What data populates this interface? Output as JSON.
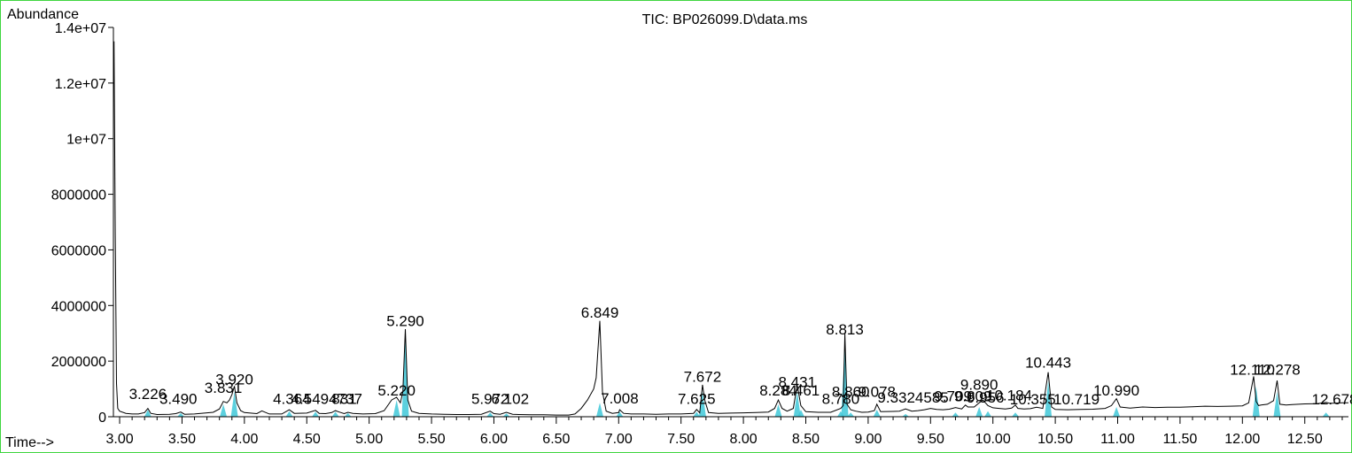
{
  "chart_data": {
    "type": "line",
    "title": "TIC: BP026099.D\\data.ms",
    "ylabel": "Abundance",
    "xlabel": "Time-->",
    "xlim": [
      2.95,
      12.85
    ],
    "ylim": [
      0,
      14000000
    ],
    "x_ticks": [
      3.0,
      3.5,
      4.0,
      4.5,
      5.0,
      5.5,
      6.0,
      6.5,
      7.0,
      7.5,
      8.0,
      8.5,
      9.0,
      9.5,
      10.0,
      10.5,
      11.0,
      11.5,
      12.0,
      12.5
    ],
    "x_tick_labels": [
      "3.00",
      "3.50",
      "4.00",
      "4.50",
      "5.00",
      "5.50",
      "6.00",
      "6.50",
      "7.00",
      "7.50",
      "8.00",
      "8.50",
      "9.00",
      "9.50",
      "10.00",
      "10.50",
      "11.00",
      "11.50",
      "12.00",
      "12.50"
    ],
    "y_ticks": [
      0,
      2000000,
      4000000,
      6000000,
      8000000,
      10000000,
      12000000,
      14000000
    ],
    "y_tick_labels": [
      "0",
      "2000000",
      "4000000",
      "6000000",
      "8000000",
      "1e+07",
      "1.2e+07",
      "1.4e+07"
    ],
    "series": [
      {
        "x": [
          2.955,
          2.965,
          2.975,
          2.985,
          3.0,
          3.05,
          3.1,
          3.15,
          3.2,
          3.226,
          3.25,
          3.3,
          3.4,
          3.45,
          3.49,
          3.52,
          3.6,
          3.7,
          3.75,
          3.8,
          3.831,
          3.86,
          3.88,
          3.9,
          3.92,
          3.94,
          3.97,
          4.0,
          4.1,
          4.14,
          4.2,
          4.3,
          4.36,
          4.4,
          4.5,
          4.57,
          4.6,
          4.65,
          4.7,
          4.73,
          4.76,
          4.8,
          4.83,
          4.87,
          4.95,
          5.05,
          5.12,
          5.18,
          5.22,
          5.25,
          5.27,
          5.29,
          5.31,
          5.34,
          5.4,
          5.5,
          5.6,
          5.7,
          5.8,
          5.9,
          5.97,
          6.0,
          6.05,
          6.1,
          6.15,
          6.2,
          6.3,
          6.4,
          6.5,
          6.6,
          6.65,
          6.7,
          6.75,
          6.8,
          6.82,
          6.849,
          6.87,
          6.9,
          6.95,
          7.0,
          7.008,
          7.04,
          7.1,
          7.2,
          7.3,
          7.4,
          7.5,
          7.6,
          7.625,
          7.65,
          7.672,
          7.69,
          7.72,
          7.8,
          7.9,
          8.0,
          8.1,
          8.2,
          8.25,
          8.28,
          8.31,
          8.35,
          8.4,
          8.431,
          8.46,
          8.5,
          8.6,
          8.7,
          8.78,
          8.8,
          8.813,
          8.83,
          8.86,
          8.9,
          8.95,
          9.0,
          9.05,
          9.07,
          9.1,
          9.2,
          9.25,
          9.3,
          9.35,
          9.4,
          9.45,
          9.5,
          9.55,
          9.6,
          9.65,
          9.7,
          9.75,
          9.78,
          9.8,
          9.85,
          9.89,
          9.92,
          9.96,
          10.0,
          10.05,
          10.1,
          10.15,
          10.18,
          10.2,
          10.25,
          10.3,
          10.35,
          10.4,
          10.443,
          10.47,
          10.5,
          10.6,
          10.7,
          10.8,
          10.9,
          10.95,
          10.99,
          11.02,
          11.1,
          11.2,
          11.3,
          11.4,
          11.5,
          11.6,
          11.7,
          11.8,
          11.9,
          12.0,
          12.05,
          12.09,
          12.11,
          12.13,
          12.15,
          12.2,
          12.25,
          12.278,
          12.3,
          12.35,
          12.4,
          12.5,
          12.6,
          12.67,
          12.7,
          12.75,
          12.8,
          12.85
        ],
        "y": [
          13500000,
          6500000,
          1200000,
          300000,
          200000,
          120000,
          100000,
          100000,
          150000,
          300000,
          120000,
          80000,
          90000,
          110000,
          170000,
          90000,
          100000,
          140000,
          160000,
          280000,
          550000,
          500000,
          600000,
          800000,
          1100000,
          500000,
          220000,
          150000,
          110000,
          210000,
          100000,
          100000,
          250000,
          120000,
          130000,
          230000,
          120000,
          110000,
          150000,
          220000,
          170000,
          110000,
          160000,
          120000,
          100000,
          110000,
          220000,
          600000,
          700000,
          500000,
          900000,
          3150000,
          600000,
          200000,
          120000,
          100000,
          90000,
          80000,
          80000,
          90000,
          200000,
          110000,
          90000,
          160000,
          90000,
          80000,
          70000,
          70000,
          60000,
          60000,
          100000,
          300000,
          600000,
          1000000,
          1400000,
          3450000,
          900000,
          200000,
          120000,
          150000,
          250000,
          120000,
          100000,
          100000,
          90000,
          100000,
          100000,
          120000,
          260000,
          140000,
          1150000,
          600000,
          150000,
          120000,
          130000,
          140000,
          150000,
          170000,
          300000,
          600000,
          300000,
          200000,
          300000,
          1150000,
          400000,
          180000,
          160000,
          160000,
          300000,
          400000,
          3000000,
          450000,
          250000,
          200000,
          160000,
          170000,
          220000,
          450000,
          180000,
          190000,
          200000,
          280000,
          200000,
          220000,
          250000,
          300000,
          260000,
          250000,
          270000,
          330000,
          280000,
          420000,
          350000,
          350000,
          500000,
          600000,
          400000,
          320000,
          300000,
          280000,
          310000,
          420000,
          300000,
          280000,
          290000,
          340000,
          300000,
          1600000,
          350000,
          260000,
          250000,
          260000,
          270000,
          300000,
          400000,
          650000,
          350000,
          310000,
          350000,
          330000,
          340000,
          340000,
          360000,
          380000,
          370000,
          380000,
          390000,
          500000,
          1450000,
          550000,
          400000,
          420000,
          450000,
          580000,
          1300000,
          450000,
          420000,
          440000,
          460000,
          470000,
          520000,
          480000,
          490000,
          500000,
          500000
        ]
      }
    ],
    "baseline_fill": [
      {
        "rt": 3.226,
        "h": 250000
      },
      {
        "rt": 3.49,
        "h": 130000
      },
      {
        "rt": 3.831,
        "h": 450000
      },
      {
        "rt": 3.92,
        "h": 900000
      },
      {
        "rt": 4.36,
        "h": 200000
      },
      {
        "rt": 4.57,
        "h": 180000
      },
      {
        "rt": 4.73,
        "h": 180000
      },
      {
        "rt": 4.83,
        "h": 130000
      },
      {
        "rt": 5.22,
        "h": 600000
      },
      {
        "rt": 5.29,
        "h": 2900000
      },
      {
        "rt": 5.97,
        "h": 150000
      },
      {
        "rt": 6.1,
        "h": 120000
      },
      {
        "rt": 6.849,
        "h": 500000
      },
      {
        "rt": 7.008,
        "h": 180000
      },
      {
        "rt": 7.625,
        "h": 180000
      },
      {
        "rt": 7.672,
        "h": 900000
      },
      {
        "rt": 8.28,
        "h": 450000
      },
      {
        "rt": 8.431,
        "h": 900000
      },
      {
        "rt": 8.461,
        "h": 250000
      },
      {
        "rt": 8.78,
        "h": 200000
      },
      {
        "rt": 8.813,
        "h": 2700000
      },
      {
        "rt": 8.86,
        "h": 150000
      },
      {
        "rt": 9.07,
        "h": 250000
      },
      {
        "rt": 9.3,
        "h": 100000
      },
      {
        "rt": 9.7,
        "h": 150000
      },
      {
        "rt": 9.89,
        "h": 350000
      },
      {
        "rt": 9.96,
        "h": 200000
      },
      {
        "rt": 10.18,
        "h": 150000
      },
      {
        "rt": 10.443,
        "h": 1300000
      },
      {
        "rt": 10.99,
        "h": 350000
      },
      {
        "rt": 12.11,
        "h": 1100000
      },
      {
        "rt": 12.278,
        "h": 900000
      },
      {
        "rt": 12.67,
        "h": 150000
      }
    ],
    "peak_labels": [
      {
        "text": "3.226",
        "rt": 3.226,
        "y": 580000
      },
      {
        "text": "3.490",
        "rt": 3.47,
        "y": 400000
      },
      {
        "text": "3.831",
        "rt": 3.831,
        "y": 800000
      },
      {
        "text": "3.920",
        "rt": 3.92,
        "y": 1100000
      },
      {
        "text": "4.364",
        "rt": 4.38,
        "y": 400000
      },
      {
        "text": "4.5494737",
        "rt": 4.66,
        "y": 400000
      },
      {
        "text": "831",
        "rt": 4.8,
        "y": 400000
      },
      {
        "text": "5.220",
        "rt": 5.22,
        "y": 700000
      },
      {
        "text": "5.290",
        "rt": 5.29,
        "y": 3200000
      },
      {
        "text": "5.972",
        "rt": 5.97,
        "y": 400000
      },
      {
        "text": "6.102",
        "rt": 6.13,
        "y": 400000
      },
      {
        "text": "6.849",
        "rt": 6.849,
        "y": 3500000
      },
      {
        "text": "7.008",
        "rt": 7.008,
        "y": 420000
      },
      {
        "text": "7.625",
        "rt": 7.625,
        "y": 400000
      },
      {
        "text": "7.672",
        "rt": 7.672,
        "y": 1200000
      },
      {
        "text": "8.284",
        "rt": 8.28,
        "y": 700000
      },
      {
        "text": "8.431",
        "rt": 8.431,
        "y": 1000000
      },
      {
        "text": "8.461",
        "rt": 8.461,
        "y": 700000
      },
      {
        "text": "8.780",
        "rt": 8.78,
        "y": 400000
      },
      {
        "text": "8.813",
        "rt": 8.813,
        "y": 2900000
      },
      {
        "text": "8.860",
        "rt": 8.86,
        "y": 650000
      },
      {
        "text": "9.078",
        "rt": 9.07,
        "y": 650000
      },
      {
        "text": "9.3324585",
        "rt": 9.36,
        "y": 450000
      },
      {
        "text": "9.709",
        "rt": 9.68,
        "y": 500000
      },
      {
        "text": "9.809",
        "rt": 9.84,
        "y": 500000
      },
      {
        "text": "9.890",
        "rt": 9.89,
        "y": 900000
      },
      {
        "text": "9.956",
        "rt": 9.94,
        "y": 450000
      },
      {
        "text": "10.184",
        "rt": 10.13,
        "y": 520000
      },
      {
        "text": "10.355",
        "rt": 10.32,
        "y": 380000
      },
      {
        "text": "10.719",
        "rt": 10.67,
        "y": 380000
      },
      {
        "text": "10.443",
        "rt": 10.443,
        "y": 1700000
      },
      {
        "text": "10.990",
        "rt": 10.99,
        "y": 700000
      },
      {
        "text": "12.110",
        "rt": 12.08,
        "y": 1450000
      },
      {
        "text": "12.278",
        "rt": 12.28,
        "y": 1450000
      },
      {
        "text": "12.678",
        "rt": 12.74,
        "y": 380000
      }
    ],
    "grid": false,
    "line_color": "#000000",
    "fill_color": "#3fc8d8",
    "frame_color": "#3fd63f"
  }
}
